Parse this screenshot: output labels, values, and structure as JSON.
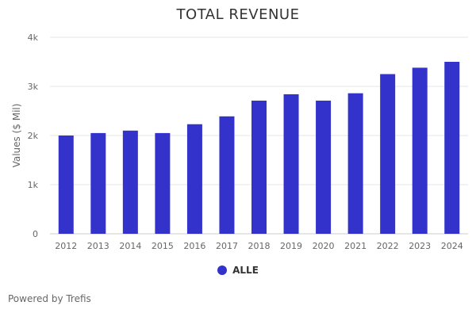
{
  "chart_data": {
    "type": "bar",
    "title": "TOTAL REVENUE",
    "ylabel": "Values ($ Mil)",
    "xlabel": "",
    "categories": [
      "2012",
      "2013",
      "2014",
      "2015",
      "2016",
      "2017",
      "2018",
      "2019",
      "2020",
      "2021",
      "2022",
      "2023",
      "2024"
    ],
    "series": [
      {
        "name": "ALLE",
        "color": "#3333cc",
        "values": [
          2000,
          2050,
          2100,
          2050,
          2230,
          2390,
          2710,
          2840,
          2710,
          2860,
          3250,
          3380,
          3500
        ]
      }
    ],
    "ylim": [
      0,
      4000
    ],
    "yticks": [
      0,
      1000,
      2000,
      3000,
      4000
    ],
    "ytick_labels": [
      "0",
      "1k",
      "2k",
      "3k",
      "4k"
    ],
    "grid": true,
    "legend_position": "bottom-center"
  },
  "credits": "Powered by Trefis"
}
